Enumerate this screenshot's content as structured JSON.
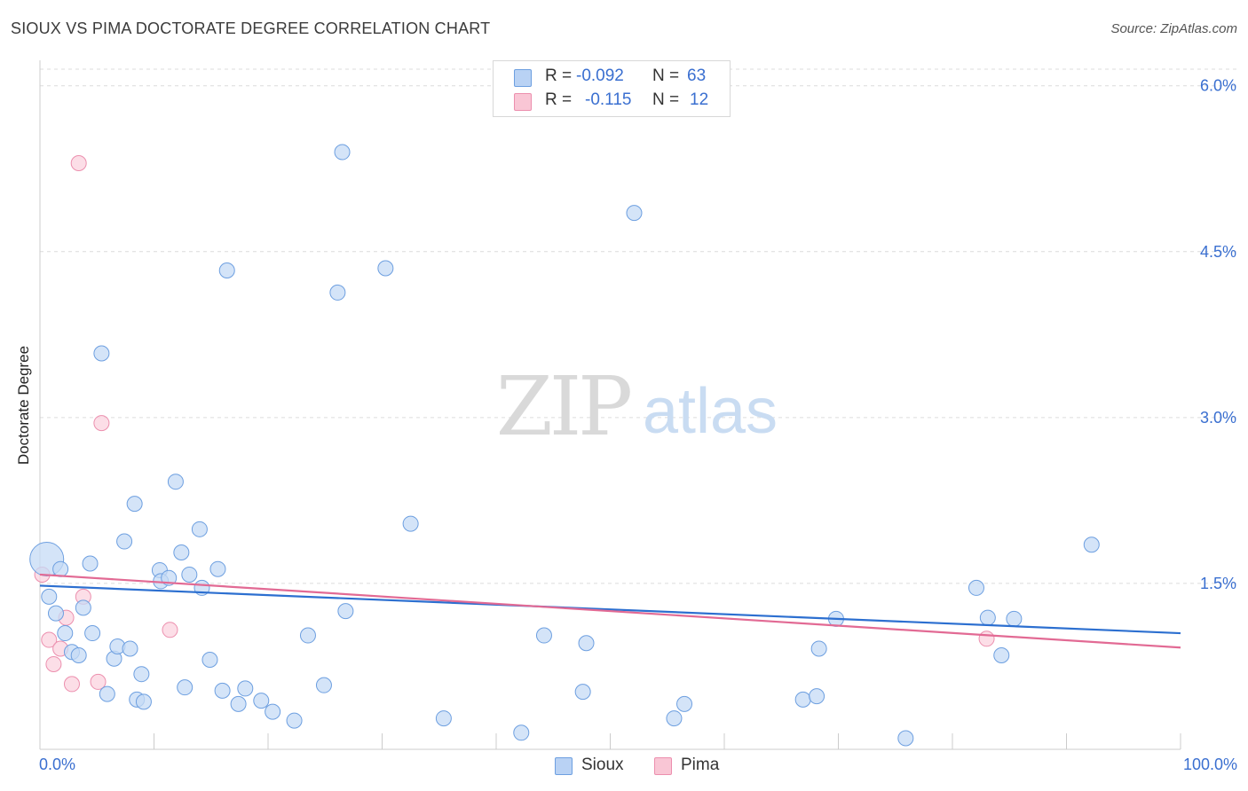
{
  "header": {
    "title": "SIOUX VS PIMA DOCTORATE DEGREE CORRELATION CHART",
    "source": "Source: ZipAtlas.com"
  },
  "watermark": {
    "zip": "ZIP",
    "atlas": "atlas"
  },
  "stats": [
    {
      "r_label": "R =",
      "r_value": "-0.092",
      "n_label": "N =",
      "n_value": "63",
      "swatch": "#b9d2f4"
    },
    {
      "r_label": "R =",
      "r_value": "-0.115",
      "n_label": "N =",
      "n_value": "12",
      "swatch": "#f9c6d5"
    }
  ],
  "legend": [
    {
      "label": "Sioux",
      "color": "#b9d2f4"
    },
    {
      "label": "Pima",
      "color": "#f9c6d5"
    }
  ],
  "colors": {
    "sioux_fill": "#c6dbf6",
    "sioux_stroke": "#6d9fe0",
    "sioux_line": "#2c6fd0",
    "pima_fill": "#fbd3df",
    "pima_stroke": "#ec8fae",
    "pima_line": "#e26a94",
    "grid": "#dcdcdc",
    "axis_text": "#3a6fd0"
  },
  "chart_data": {
    "type": "scatter",
    "title": "SIOUX VS PIMA DOCTORATE DEGREE CORRELATION CHART",
    "xlabel": "",
    "ylabel": "Doctorate Degree",
    "xlim": [
      0,
      100
    ],
    "ylim": [
      0,
      6.15
    ],
    "x_tick_labels": [
      "0.0%",
      "100.0%"
    ],
    "y_ticks": [
      1.5,
      3.0,
      4.5,
      6.0
    ],
    "y_tick_labels": [
      "1.5%",
      "3.0%",
      "4.5%",
      "6.0%"
    ],
    "grid": true,
    "legend_position": "bottom-center",
    "series": [
      {
        "name": "Sioux",
        "r": -0.092,
        "n": 63,
        "trend": {
          "x": [
            0,
            100
          ],
          "y": [
            1.48,
            1.05
          ]
        },
        "points": [
          {
            "x": 0.6,
            "y": 1.72,
            "big": true
          },
          {
            "x": 1.8,
            "y": 1.63
          },
          {
            "x": 0.8,
            "y": 1.38
          },
          {
            "x": 1.4,
            "y": 1.23
          },
          {
            "x": 2.2,
            "y": 1.05
          },
          {
            "x": 2.8,
            "y": 0.88
          },
          {
            "x": 3.4,
            "y": 0.85
          },
          {
            "x": 3.8,
            "y": 1.28
          },
          {
            "x": 4.4,
            "y": 1.68
          },
          {
            "x": 4.6,
            "y": 1.05
          },
          {
            "x": 5.4,
            "y": 3.58
          },
          {
            "x": 5.9,
            "y": 0.5
          },
          {
            "x": 6.5,
            "y": 0.82
          },
          {
            "x": 6.8,
            "y": 0.93
          },
          {
            "x": 7.4,
            "y": 1.88
          },
          {
            "x": 7.9,
            "y": 0.91
          },
          {
            "x": 8.3,
            "y": 2.22
          },
          {
            "x": 8.5,
            "y": 0.45
          },
          {
            "x": 8.9,
            "y": 0.68
          },
          {
            "x": 9.1,
            "y": 0.43
          },
          {
            "x": 10.5,
            "y": 1.62
          },
          {
            "x": 10.6,
            "y": 1.52
          },
          {
            "x": 11.3,
            "y": 1.55
          },
          {
            "x": 11.9,
            "y": 2.42
          },
          {
            "x": 12.4,
            "y": 1.78
          },
          {
            "x": 12.7,
            "y": 0.56
          },
          {
            "x": 13.1,
            "y": 1.58
          },
          {
            "x": 14.0,
            "y": 1.99
          },
          {
            "x": 14.2,
            "y": 1.46
          },
          {
            "x": 14.9,
            "y": 0.81
          },
          {
            "x": 15.6,
            "y": 1.63
          },
          {
            "x": 16.0,
            "y": 0.53
          },
          {
            "x": 16.4,
            "y": 4.33
          },
          {
            "x": 17.4,
            "y": 0.41
          },
          {
            "x": 18.0,
            "y": 0.55
          },
          {
            "x": 19.4,
            "y": 0.44
          },
          {
            "x": 20.4,
            "y": 0.34
          },
          {
            "x": 22.3,
            "y": 0.26
          },
          {
            "x": 23.5,
            "y": 1.03
          },
          {
            "x": 24.9,
            "y": 0.58
          },
          {
            "x": 26.1,
            "y": 4.13
          },
          {
            "x": 26.5,
            "y": 5.4
          },
          {
            "x": 26.8,
            "y": 1.25
          },
          {
            "x": 30.3,
            "y": 4.35
          },
          {
            "x": 32.5,
            "y": 2.04
          },
          {
            "x": 35.4,
            "y": 0.28
          },
          {
            "x": 42.2,
            "y": 0.15
          },
          {
            "x": 44.2,
            "y": 1.03
          },
          {
            "x": 47.6,
            "y": 0.52
          },
          {
            "x": 47.9,
            "y": 0.96
          },
          {
            "x": 52.1,
            "y": 4.85
          },
          {
            "x": 55.6,
            "y": 0.28
          },
          {
            "x": 56.5,
            "y": 0.41
          },
          {
            "x": 66.9,
            "y": 0.45
          },
          {
            "x": 68.1,
            "y": 0.48
          },
          {
            "x": 68.3,
            "y": 0.91
          },
          {
            "x": 69.8,
            "y": 1.18
          },
          {
            "x": 75.9,
            "y": 0.1
          },
          {
            "x": 82.1,
            "y": 1.46
          },
          {
            "x": 83.1,
            "y": 1.19
          },
          {
            "x": 84.3,
            "y": 0.85
          },
          {
            "x": 85.4,
            "y": 1.18
          },
          {
            "x": 92.2,
            "y": 1.85
          }
        ]
      },
      {
        "name": "Pima",
        "r": -0.115,
        "n": 12,
        "trend": {
          "x": [
            0,
            100
          ],
          "y": [
            1.58,
            0.92
          ]
        },
        "points": [
          {
            "x": 0.2,
            "y": 1.58
          },
          {
            "x": 0.8,
            "y": 0.99
          },
          {
            "x": 1.2,
            "y": 0.77
          },
          {
            "x": 1.8,
            "y": 0.91
          },
          {
            "x": 2.3,
            "y": 1.19
          },
          {
            "x": 2.8,
            "y": 0.59
          },
          {
            "x": 3.4,
            "y": 5.3
          },
          {
            "x": 3.8,
            "y": 1.38
          },
          {
            "x": 5.1,
            "y": 0.61
          },
          {
            "x": 5.4,
            "y": 2.95
          },
          {
            "x": 11.4,
            "y": 1.08
          },
          {
            "x": 83.0,
            "y": 1.0
          }
        ]
      }
    ]
  }
}
